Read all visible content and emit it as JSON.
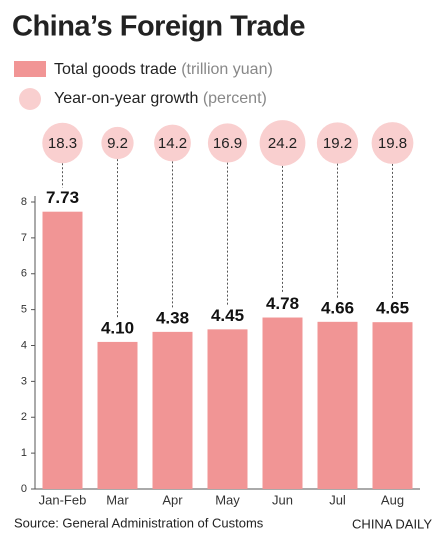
{
  "chart_data": {
    "type": "bar",
    "title": "China’s Foreign Trade",
    "categories": [
      "Jan-Feb",
      "Mar",
      "Apr",
      "May",
      "Jun",
      "Jul",
      "Aug"
    ],
    "series": [
      {
        "name": "Total goods trade",
        "unit": "(trillion yuan)",
        "type": "bar",
        "color": "#f19595",
        "values": [
          7.73,
          4.1,
          4.38,
          4.45,
          4.78,
          4.66,
          4.65
        ],
        "value_labels": [
          "7.73",
          "4.10",
          "4.38",
          "4.45",
          "4.78",
          "4.66",
          "4.65"
        ]
      },
      {
        "name": "Year-on-year growth",
        "unit": "(percent)",
        "type": "bubble",
        "color": "#f9cfcf",
        "values": [
          18.3,
          9.2,
          14.2,
          16.9,
          24.2,
          19.2,
          19.8
        ]
      }
    ],
    "ylim": [
      0,
      8
    ],
    "yticks": [
      0,
      1,
      2,
      3,
      4,
      5,
      6,
      7,
      8
    ],
    "source": "Source:  General Administration of Customs",
    "credit": "CHINA DAILY"
  }
}
